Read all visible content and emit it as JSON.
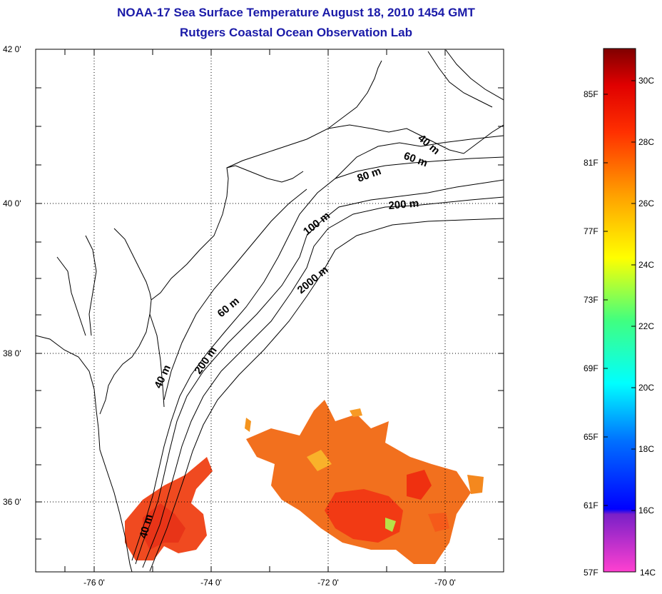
{
  "title_line1": "NOAA-17 Sea Surface Temperature August 18, 2010 1454 GMT",
  "title_line2": "Rutgers Coastal Ocean Observation Lab",
  "map": {
    "lat_ticks": [
      "42 0'",
      "40 0'",
      "38 0'",
      "36 0'"
    ],
    "lon_ticks": [
      "-76 0'",
      "-74 0'",
      "-72 0'",
      "-70 0'"
    ],
    "grid": "dotted",
    "contour_labels": [
      "40 m",
      "60 m",
      "80 m",
      "200 m",
      "100 m",
      "2000 m",
      "60 m",
      "200 m",
      "40 m",
      "40 m"
    ]
  },
  "colorbar": {
    "fahrenheit_labels": [
      "85F",
      "81F",
      "77F",
      "73F",
      "69F",
      "65F",
      "61F",
      "57F"
    ],
    "celsius_labels": [
      "30C",
      "28C",
      "26C",
      "24C",
      "22C",
      "20C",
      "18C",
      "16C",
      "14C"
    ],
    "colors": [
      "#8b0000",
      "#ff0000",
      "#ff8c00",
      "#ffff00",
      "#7fff00",
      "#00ffff",
      "#0080ff",
      "#0000ff",
      "#8000c0",
      "#ff40c0"
    ]
  }
}
